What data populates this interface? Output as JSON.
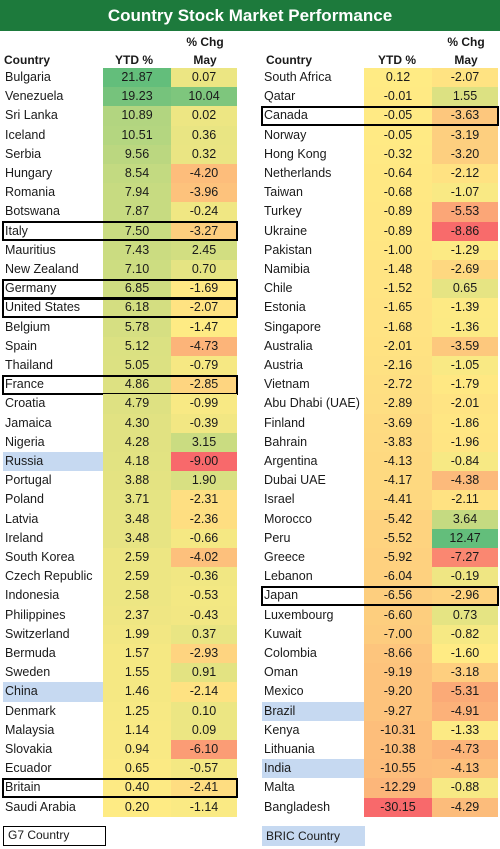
{
  "title": "Country Stock Market Performance",
  "headers": {
    "country": "Country",
    "ytd": "YTD % Chg",
    "chg_top": "% Chg",
    "chg_bottom": "May"
  },
  "legend": {
    "g7": "G7 Country",
    "bric": "BRIC Country"
  },
  "colors": {
    "title_bg": "#1d7a3c",
    "bric": "#c6d9f1",
    "high": "#63be7b",
    "mid": "#ffeb84",
    "low": "#f8696b"
  },
  "chart_data": {
    "type": "table",
    "columns": [
      "Country",
      "YTD % Chg",
      "% Chg May"
    ],
    "left": [
      {
        "country": "Bulgaria",
        "ytd": "21.87",
        "may": "0.07"
      },
      {
        "country": "Venezuela",
        "ytd": "19.23",
        "may": "10.04"
      },
      {
        "country": "Sri Lanka",
        "ytd": "10.89",
        "may": "0.02"
      },
      {
        "country": "Iceland",
        "ytd": "10.51",
        "may": "0.36"
      },
      {
        "country": "Serbia",
        "ytd": "9.56",
        "may": "0.32"
      },
      {
        "country": "Hungary",
        "ytd": "8.54",
        "may": "-4.20"
      },
      {
        "country": "Romania",
        "ytd": "7.94",
        "may": "-3.96"
      },
      {
        "country": "Botswana",
        "ytd": "7.87",
        "may": "-0.24"
      },
      {
        "country": "Italy",
        "ytd": "7.50",
        "may": "-3.27",
        "group": "g7"
      },
      {
        "country": "Mauritius",
        "ytd": "7.43",
        "may": "2.45"
      },
      {
        "country": "New Zealand",
        "ytd": "7.10",
        "may": "0.70"
      },
      {
        "country": "Germany",
        "ytd": "6.85",
        "may": "-1.69",
        "group": "g7"
      },
      {
        "country": "United States",
        "ytd": "6.18",
        "may": "-2.07",
        "group": "g7"
      },
      {
        "country": "Belgium",
        "ytd": "5.78",
        "may": "-1.47"
      },
      {
        "country": "Spain",
        "ytd": "5.12",
        "may": "-4.73"
      },
      {
        "country": "Thailand",
        "ytd": "5.05",
        "may": "-0.79"
      },
      {
        "country": "France",
        "ytd": "4.86",
        "may": "-2.85",
        "group": "g7"
      },
      {
        "country": "Croatia",
        "ytd": "4.79",
        "may": "-0.99"
      },
      {
        "country": "Jamaica",
        "ytd": "4.30",
        "may": "-0.39"
      },
      {
        "country": "Nigeria",
        "ytd": "4.28",
        "may": "3.15"
      },
      {
        "country": "Russia",
        "ytd": "4.18",
        "may": "-9.00",
        "group": "bric"
      },
      {
        "country": "Portugal",
        "ytd": "3.88",
        "may": "1.90"
      },
      {
        "country": "Poland",
        "ytd": "3.71",
        "may": "-2.31"
      },
      {
        "country": "Latvia",
        "ytd": "3.48",
        "may": "-2.36"
      },
      {
        "country": "Ireland",
        "ytd": "3.48",
        "may": "-0.66"
      },
      {
        "country": "South Korea",
        "ytd": "2.59",
        "may": "-4.02"
      },
      {
        "country": "Czech Republic",
        "ytd": "2.59",
        "may": "-0.36"
      },
      {
        "country": "Indonesia",
        "ytd": "2.58",
        "may": "-0.53"
      },
      {
        "country": "Philippines",
        "ytd": "2.37",
        "may": "-0.43"
      },
      {
        "country": "Switzerland",
        "ytd": "1.99",
        "may": "0.37"
      },
      {
        "country": "Bermuda",
        "ytd": "1.57",
        "may": "-2.93"
      },
      {
        "country": "Sweden",
        "ytd": "1.55",
        "may": "0.91"
      },
      {
        "country": "China",
        "ytd": "1.46",
        "may": "-2.14",
        "group": "bric"
      },
      {
        "country": "Denmark",
        "ytd": "1.25",
        "may": "0.10"
      },
      {
        "country": "Malaysia",
        "ytd": "1.14",
        "may": "0.09"
      },
      {
        "country": "Slovakia",
        "ytd": "0.94",
        "may": "-6.10"
      },
      {
        "country": "Ecuador",
        "ytd": "0.65",
        "may": "-0.57"
      },
      {
        "country": "Britain",
        "ytd": "0.40",
        "may": "-2.41",
        "group": "g7"
      },
      {
        "country": "Saudi Arabia",
        "ytd": "0.20",
        "may": "-1.14"
      }
    ],
    "right": [
      {
        "country": "South Africa",
        "ytd": "0.12",
        "may": "-2.07"
      },
      {
        "country": "Qatar",
        "ytd": "-0.01",
        "may": "1.55"
      },
      {
        "country": "Canada",
        "ytd": "-0.05",
        "may": "-3.63",
        "group": "g7"
      },
      {
        "country": "Norway",
        "ytd": "-0.05",
        "may": "-3.19"
      },
      {
        "country": "Hong Kong",
        "ytd": "-0.32",
        "may": "-3.20"
      },
      {
        "country": "Netherlands",
        "ytd": "-0.64",
        "may": "-2.12"
      },
      {
        "country": "Taiwan",
        "ytd": "-0.68",
        "may": "-1.07"
      },
      {
        "country": "Turkey",
        "ytd": "-0.89",
        "may": "-5.53"
      },
      {
        "country": "Ukraine",
        "ytd": "-0.89",
        "may": "-8.86"
      },
      {
        "country": "Pakistan",
        "ytd": "-1.00",
        "may": "-1.29"
      },
      {
        "country": "Namibia",
        "ytd": "-1.48",
        "may": "-2.69"
      },
      {
        "country": "Chile",
        "ytd": "-1.52",
        "may": "0.65"
      },
      {
        "country": "Estonia",
        "ytd": "-1.65",
        "may": "-1.39"
      },
      {
        "country": "Singapore",
        "ytd": "-1.68",
        "may": "-1.36"
      },
      {
        "country": "Australia",
        "ytd": "-2.01",
        "may": "-3.59"
      },
      {
        "country": "Austria",
        "ytd": "-2.16",
        "may": "-1.05"
      },
      {
        "country": "Vietnam",
        "ytd": "-2.72",
        "may": "-1.79"
      },
      {
        "country": "Abu Dhabi (UAE)",
        "ytd": "-2.89",
        "may": "-2.01"
      },
      {
        "country": "Finland",
        "ytd": "-3.69",
        "may": "-1.86"
      },
      {
        "country": "Bahrain",
        "ytd": "-3.83",
        "may": "-1.96"
      },
      {
        "country": "Argentina",
        "ytd": "-4.13",
        "may": "-0.84"
      },
      {
        "country": "Dubai UAE",
        "ytd": "-4.17",
        "may": "-4.38"
      },
      {
        "country": "Israel",
        "ytd": "-4.41",
        "may": "-2.11"
      },
      {
        "country": "Morocco",
        "ytd": "-5.42",
        "may": "3.64"
      },
      {
        "country": "Peru",
        "ytd": "-5.52",
        "may": "12.47"
      },
      {
        "country": "Greece",
        "ytd": "-5.92",
        "may": "-7.27"
      },
      {
        "country": "Lebanon",
        "ytd": "-6.04",
        "may": "-0.19"
      },
      {
        "country": "Japan",
        "ytd": "-6.56",
        "may": "-2.96",
        "group": "g7"
      },
      {
        "country": "Luxembourg",
        "ytd": "-6.60",
        "may": "0.73"
      },
      {
        "country": "Kuwait",
        "ytd": "-7.00",
        "may": "-0.82"
      },
      {
        "country": "Colombia",
        "ytd": "-8.66",
        "may": "-1.60"
      },
      {
        "country": "Oman",
        "ytd": "-9.19",
        "may": "-3.18"
      },
      {
        "country": "Mexico",
        "ytd": "-9.20",
        "may": "-5.31"
      },
      {
        "country": "Brazil",
        "ytd": "-9.27",
        "may": "-4.91",
        "group": "bric"
      },
      {
        "country": "Kenya",
        "ytd": "-10.31",
        "may": "-1.33"
      },
      {
        "country": "Lithuania",
        "ytd": "-10.38",
        "may": "-4.73"
      },
      {
        "country": "India",
        "ytd": "-10.55",
        "may": "-4.13",
        "group": "bric"
      },
      {
        "country": "Malta",
        "ytd": "-12.29",
        "may": "-0.88"
      },
      {
        "country": "Bangladesh",
        "ytd": "-30.15",
        "may": "-4.29"
      }
    ]
  }
}
